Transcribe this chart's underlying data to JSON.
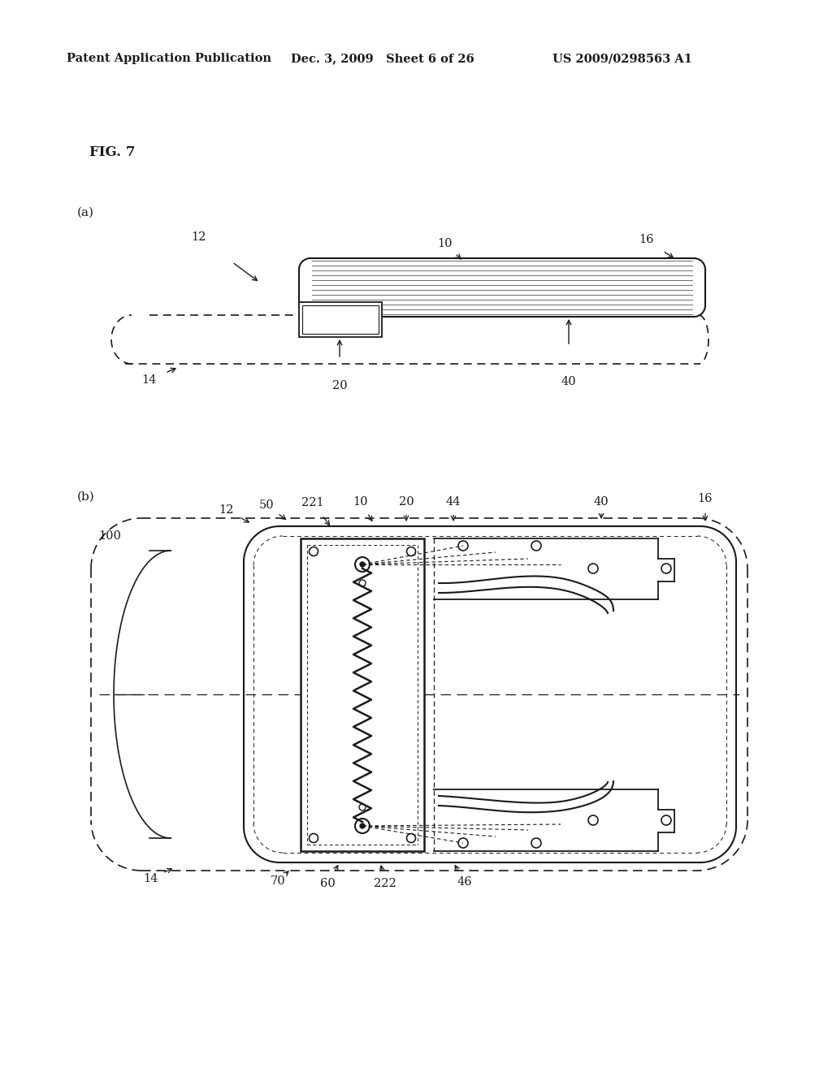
{
  "bg_color": "#ffffff",
  "lc": "#1a1a1a",
  "header_left": "Patent Application Publication",
  "header_mid": "Dec. 3, 2009   Sheet 6 of 26",
  "header_right": "US 2009/0298563 A1",
  "fig_label": "FIG. 7",
  "diag_a_label": "(a)",
  "diag_b_label": "(b)"
}
